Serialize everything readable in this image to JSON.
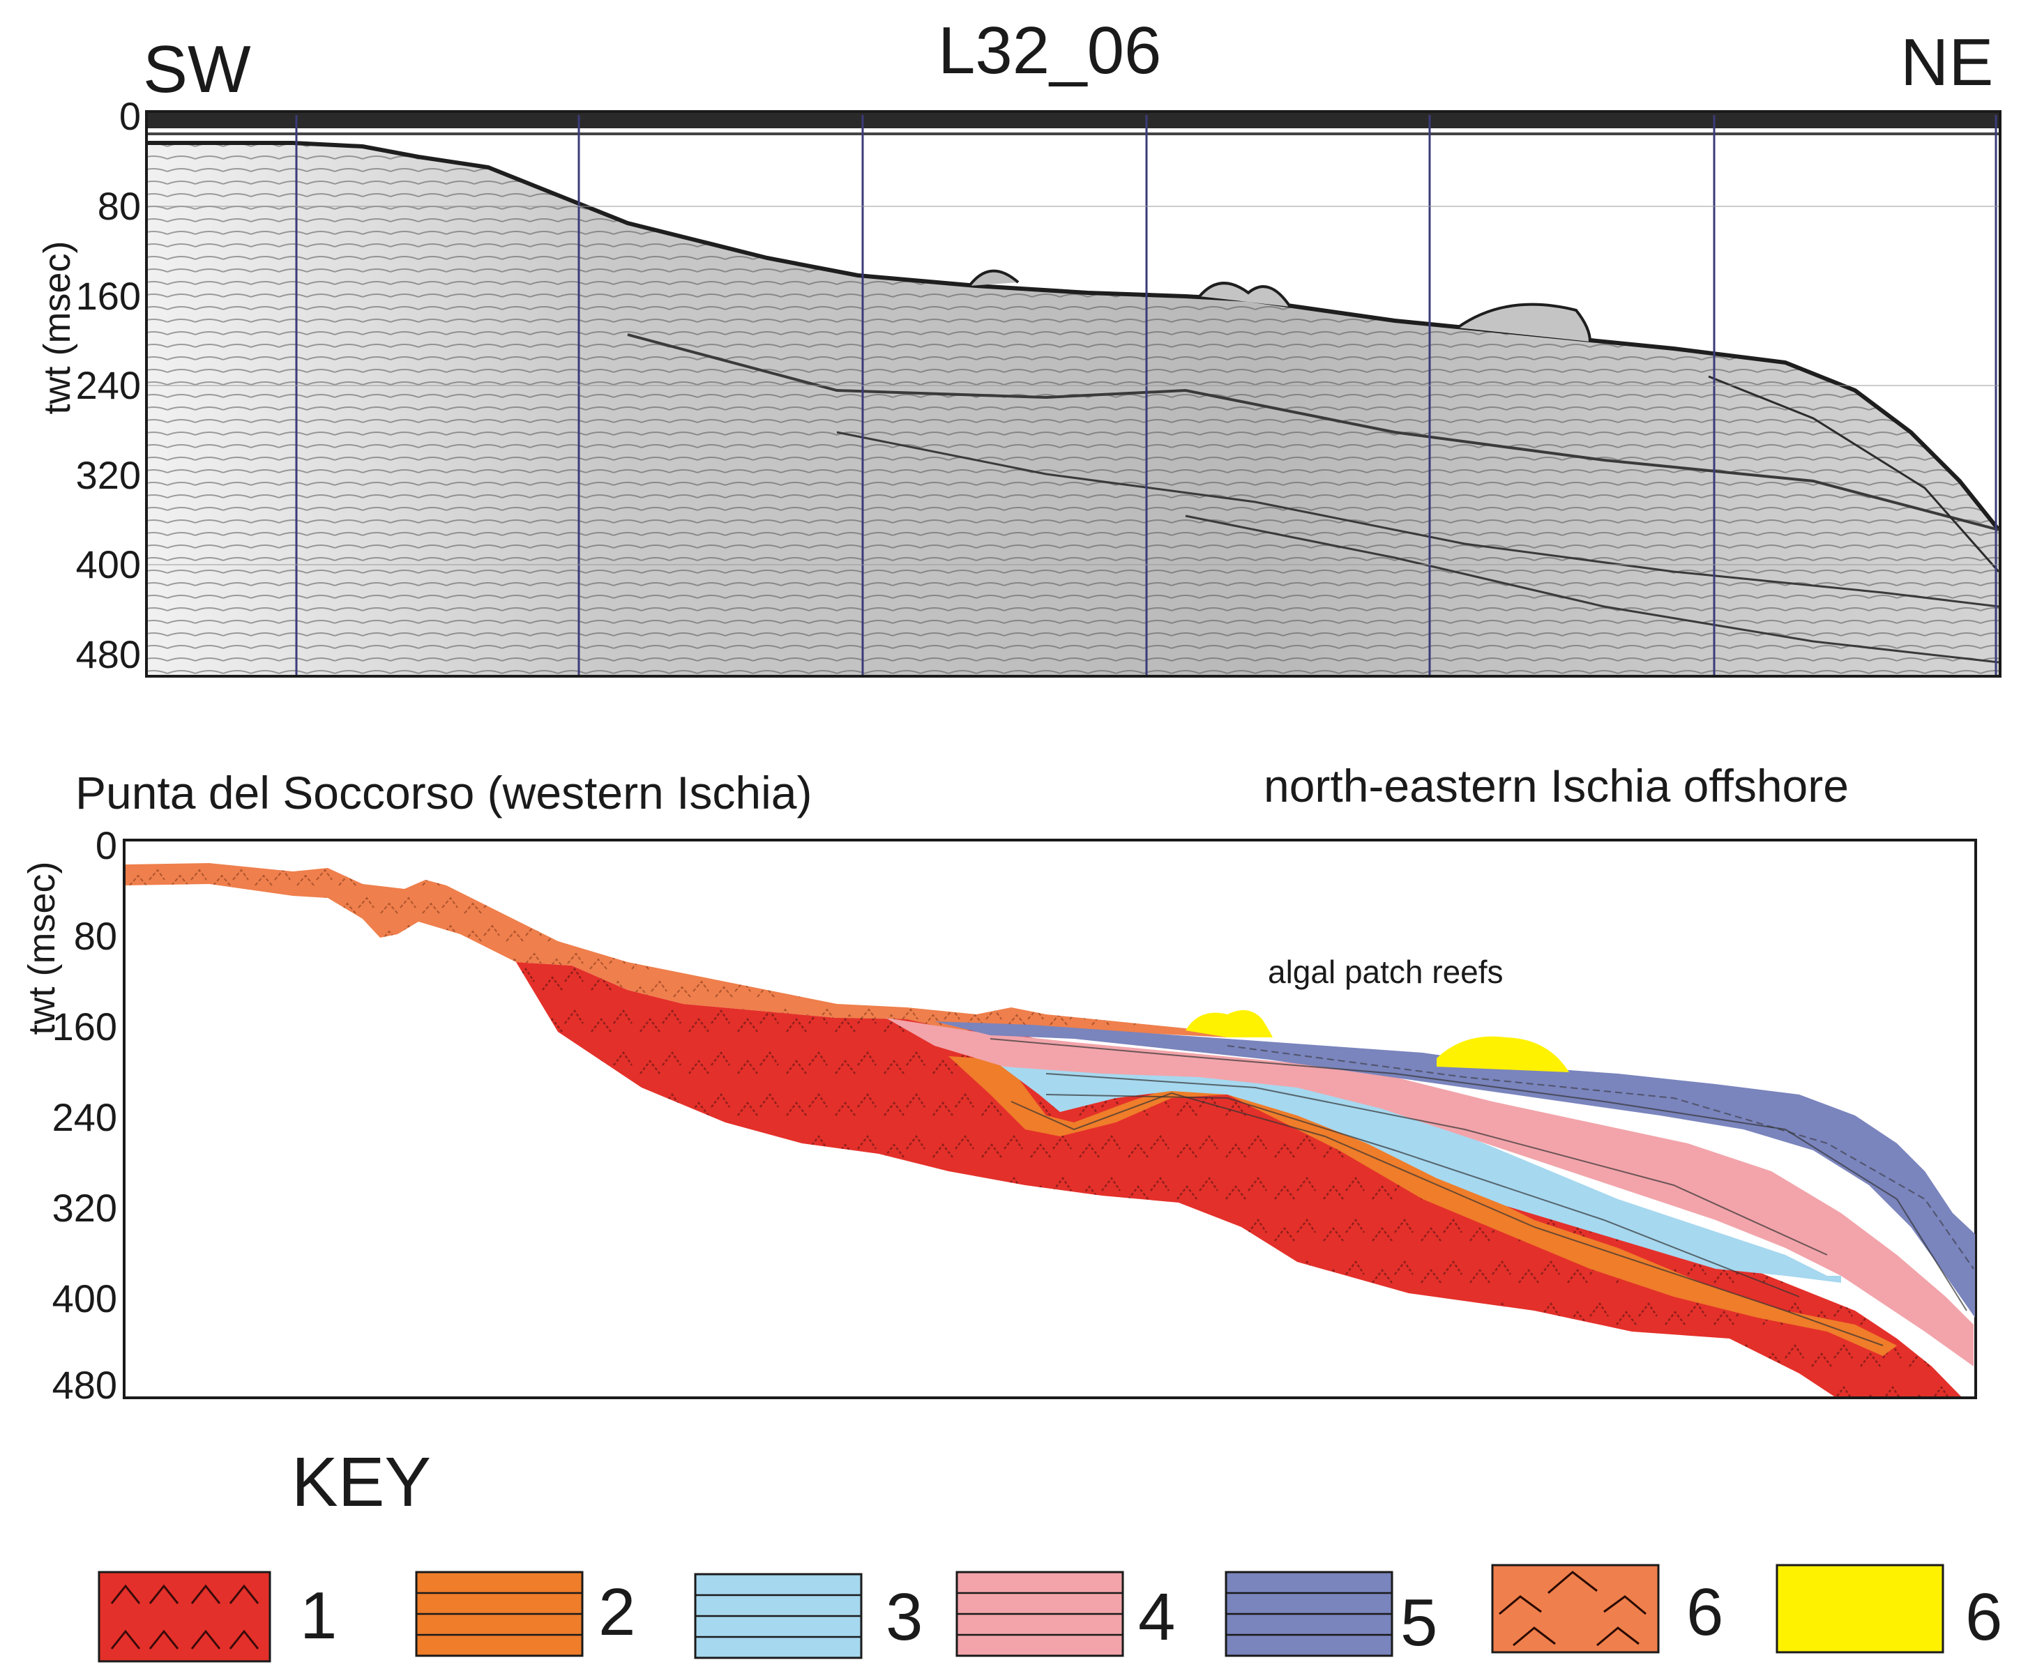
{
  "header": {
    "left_direction": "SW",
    "line_name": "L32_06",
    "right_direction": "NE"
  },
  "seismic_panel": {
    "axis_title": "twt (msec)",
    "ticks": [
      "0",
      "80",
      "160",
      "240",
      "320",
      "400",
      "480"
    ]
  },
  "interpretation_panel": {
    "axis_title": "twt (msec)",
    "ticks": [
      "0",
      "80",
      "160",
      "240",
      "320",
      "400",
      "480"
    ],
    "left_location": "Punta del Soccorso (western Ischia)",
    "right_location": "north-eastern Ischia offshore",
    "annotation": "algal patch reefs"
  },
  "key": {
    "title": "KEY",
    "items": [
      {
        "number": "1",
        "color": "#e4302a",
        "pattern": "chevron"
      },
      {
        "number": "2",
        "color": "#ef7d2a",
        "pattern": "lines"
      },
      {
        "number": "3",
        "color": "#a6d8ef",
        "pattern": "lines"
      },
      {
        "number": "4",
        "color": "#f2a4aa",
        "pattern": "lines"
      },
      {
        "number": "5",
        "color": "#7a84bd",
        "pattern": "lines"
      },
      {
        "number": "6",
        "color": "#ef7f4c",
        "pattern": "arcs"
      },
      {
        "number": "6",
        "color": "#fff200",
        "pattern": "plain"
      }
    ]
  }
}
